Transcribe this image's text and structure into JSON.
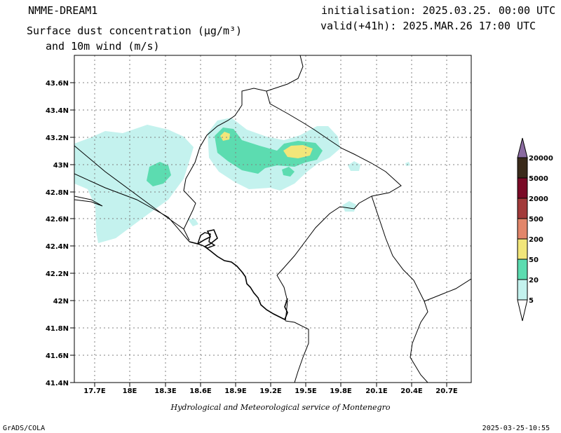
{
  "header": {
    "model": "NMME-DREAM1",
    "title_line1": "Surface dust concentration (µg/m³)",
    "title_line2": "and 10m wind (m/s)",
    "init": "initialisation: 2025.03.25. 00:00 UTC",
    "valid": "valid(+41h): 2025.MAR.26 17:00 UTC"
  },
  "map": {
    "lat_labels": [
      "43.6N",
      "43.4N",
      "43.2N",
      "43N",
      "42.8N",
      "42.6N",
      "42.4N",
      "42.2N",
      "42N",
      "41.8N",
      "41.6N",
      "41.4N"
    ],
    "lon_labels": [
      "17.7E",
      "18E",
      "18.3E",
      "18.6E",
      "18.9E",
      "19.2E",
      "19.5E",
      "19.8E",
      "20.1E",
      "20.4E",
      "20.7E"
    ]
  },
  "legend": {
    "levels": [
      "20000",
      "5000",
      "2000",
      "500",
      "200",
      "50",
      "20",
      "5"
    ],
    "colors": [
      "#3a2a1a",
      "#7a0a26",
      "#a23a3a",
      "#e2866a",
      "#f2e67a",
      "#5cdcb0",
      "#c4f2ee",
      "#ffffff"
    ],
    "arrow_top_color": "#8a6aa0"
  },
  "footer": {
    "credit": "Hydrological and Meteorological service of Montenegro",
    "software": "GrADS/COLA",
    "timestamp": "2025-03-25-10:55"
  }
}
